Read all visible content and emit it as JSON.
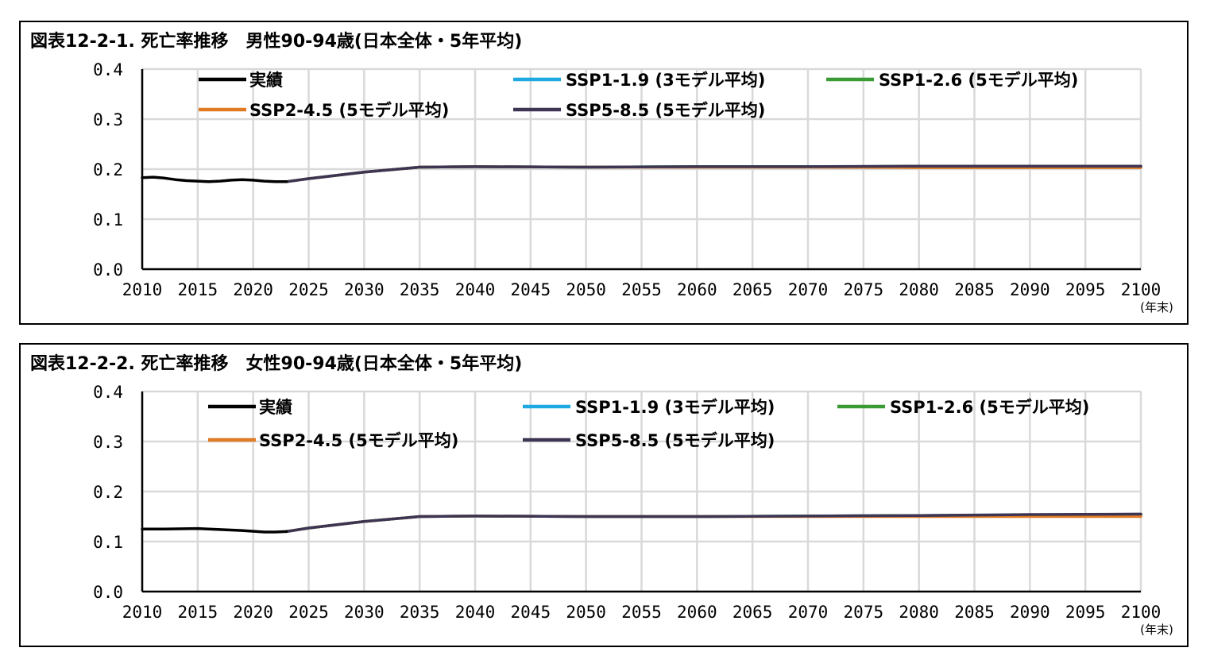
{
  "charts": [
    {
      "title": "図表12-2-1. 死亡率推移　男性90-94歳(日本全体・5年平均)",
      "unit_label": "(年末)"
    },
    {
      "title": "図表12-2-2. 死亡率推移　女性90-94歳(日本全体・5年平均)",
      "unit_label": "(年末)"
    }
  ],
  "chart_data": [
    {
      "type": "line",
      "title": "図表12-2-1. 死亡率推移　男性90-94歳(日本全体・5年平均)",
      "xlabel": "(年末)",
      "ylabel": "",
      "xlim": [
        2010,
        2100
      ],
      "ylim": [
        0.0,
        0.4
      ],
      "x_ticks": [
        "2010",
        "2015",
        "2020",
        "2025",
        "2030",
        "2035",
        "2040",
        "2045",
        "2050",
        "2055",
        "2060",
        "2065",
        "2070",
        "2075",
        "2080",
        "2085",
        "2090",
        "2095",
        "2100"
      ],
      "y_ticks": [
        "0.0",
        "0.1",
        "0.2",
        "0.3",
        "0.4"
      ],
      "grid": true,
      "legend_position": "top",
      "series": [
        {
          "name": "実績",
          "color": "#000000",
          "points": [
            [
              2010,
              0.183
            ],
            [
              2011,
              0.184
            ],
            [
              2012,
              0.182
            ],
            [
              2013,
              0.179
            ],
            [
              2014,
              0.177
            ],
            [
              2015,
              0.176
            ],
            [
              2016,
              0.175
            ],
            [
              2017,
              0.176
            ],
            [
              2018,
              0.178
            ],
            [
              2019,
              0.179
            ],
            [
              2020,
              0.178
            ],
            [
              2021,
              0.176
            ],
            [
              2022,
              0.175
            ],
            [
              2023,
              0.175
            ]
          ]
        },
        {
          "name": "SSP1-1.9 (3モデル平均)",
          "color": "#1fa9e1",
          "points": [
            [
              2023,
              0.175
            ],
            [
              2025,
              0.181
            ],
            [
              2030,
              0.194
            ],
            [
              2035,
              0.204
            ],
            [
              2040,
              0.205
            ],
            [
              2050,
              0.204
            ],
            [
              2060,
              0.205
            ],
            [
              2070,
              0.205
            ],
            [
              2080,
              0.205
            ],
            [
              2090,
              0.205
            ],
            [
              2100,
              0.205
            ]
          ]
        },
        {
          "name": "SSP1-2.6 (5モデル平均)",
          "color": "#3a9b35",
          "points": [
            [
              2023,
              0.175
            ],
            [
              2025,
              0.181
            ],
            [
              2030,
              0.194
            ],
            [
              2035,
              0.204
            ],
            [
              2040,
              0.205
            ],
            [
              2050,
              0.204
            ],
            [
              2060,
              0.205
            ],
            [
              2070,
              0.205
            ],
            [
              2080,
              0.205
            ],
            [
              2090,
              0.205
            ],
            [
              2100,
              0.205
            ]
          ]
        },
        {
          "name": "SSP2-4.5 (5モデル平均)",
          "color": "#e07b24",
          "points": [
            [
              2023,
              0.175
            ],
            [
              2025,
              0.181
            ],
            [
              2030,
              0.194
            ],
            [
              2035,
              0.204
            ],
            [
              2040,
              0.205
            ],
            [
              2050,
              0.204
            ],
            [
              2060,
              0.204
            ],
            [
              2070,
              0.204
            ],
            [
              2080,
              0.203
            ],
            [
              2090,
              0.203
            ],
            [
              2100,
              0.203
            ]
          ]
        },
        {
          "name": "SSP5-8.5 (5モデル平均)",
          "color": "#3d3553",
          "points": [
            [
              2023,
              0.175
            ],
            [
              2025,
              0.181
            ],
            [
              2030,
              0.194
            ],
            [
              2035,
              0.204
            ],
            [
              2040,
              0.205
            ],
            [
              2050,
              0.204
            ],
            [
              2060,
              0.205
            ],
            [
              2070,
              0.205
            ],
            [
              2080,
              0.206
            ],
            [
              2090,
              0.206
            ],
            [
              2100,
              0.206
            ]
          ]
        }
      ]
    },
    {
      "type": "line",
      "title": "図表12-2-2. 死亡率推移　女性90-94歳(日本全体・5年平均)",
      "xlabel": "(年末)",
      "ylabel": "",
      "xlim": [
        2010,
        2100
      ],
      "ylim": [
        0.0,
        0.4
      ],
      "x_ticks": [
        "2010",
        "2015",
        "2020",
        "2025",
        "2030",
        "2035",
        "2040",
        "2045",
        "2050",
        "2055",
        "2060",
        "2065",
        "2070",
        "2075",
        "2080",
        "2085",
        "2090",
        "2095",
        "2100"
      ],
      "y_ticks": [
        "0.0",
        "0.1",
        "0.2",
        "0.3",
        "0.4"
      ],
      "grid": true,
      "legend_position": "top",
      "series": [
        {
          "name": "実績",
          "color": "#000000",
          "points": [
            [
              2010,
              0.125
            ],
            [
              2012,
              0.125
            ],
            [
              2015,
              0.126
            ],
            [
              2017,
              0.124
            ],
            [
              2019,
              0.122
            ],
            [
              2021,
              0.119
            ],
            [
              2022,
              0.119
            ],
            [
              2023,
              0.12
            ]
          ]
        },
        {
          "name": "SSP1-1.9 (3モデル平均)",
          "color": "#1fa9e1",
          "points": [
            [
              2023,
              0.12
            ],
            [
              2025,
              0.127
            ],
            [
              2030,
              0.14
            ],
            [
              2035,
              0.15
            ],
            [
              2040,
              0.151
            ],
            [
              2050,
              0.15
            ],
            [
              2060,
              0.15
            ],
            [
              2070,
              0.151
            ],
            [
              2080,
              0.152
            ],
            [
              2090,
              0.153
            ],
            [
              2100,
              0.154
            ]
          ]
        },
        {
          "name": "SSP1-2.6 (5モデル平均)",
          "color": "#3a9b35",
          "points": [
            [
              2023,
              0.12
            ],
            [
              2025,
              0.127
            ],
            [
              2030,
              0.14
            ],
            [
              2035,
              0.15
            ],
            [
              2040,
              0.151
            ],
            [
              2050,
              0.15
            ],
            [
              2060,
              0.15
            ],
            [
              2070,
              0.151
            ],
            [
              2080,
              0.152
            ],
            [
              2090,
              0.153
            ],
            [
              2100,
              0.153
            ]
          ]
        },
        {
          "name": "SSP2-4.5 (5モデル平均)",
          "color": "#e07b24",
          "points": [
            [
              2023,
              0.12
            ],
            [
              2025,
              0.127
            ],
            [
              2030,
              0.14
            ],
            [
              2035,
              0.15
            ],
            [
              2040,
              0.151
            ],
            [
              2050,
              0.15
            ],
            [
              2060,
              0.15
            ],
            [
              2070,
              0.15
            ],
            [
              2080,
              0.15
            ],
            [
              2090,
              0.15
            ],
            [
              2100,
              0.15
            ]
          ]
        },
        {
          "name": "SSP5-8.5 (5モデル平均)",
          "color": "#3d3553",
          "points": [
            [
              2023,
              0.12
            ],
            [
              2025,
              0.127
            ],
            [
              2030,
              0.14
            ],
            [
              2035,
              0.15
            ],
            [
              2040,
              0.151
            ],
            [
              2050,
              0.15
            ],
            [
              2060,
              0.15
            ],
            [
              2070,
              0.151
            ],
            [
              2080,
              0.152
            ],
            [
              2090,
              0.154
            ],
            [
              2100,
              0.155
            ]
          ]
        }
      ]
    }
  ]
}
